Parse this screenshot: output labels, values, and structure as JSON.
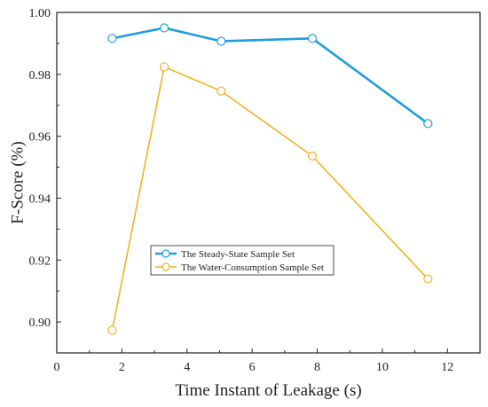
{
  "chart_data": {
    "type": "line",
    "title": "",
    "xlabel": "Time Instant of Leakage (s)",
    "ylabel": "F-Score (%)",
    "xlim": [
      0,
      13
    ],
    "ylim": [
      0.89,
      1.0
    ],
    "xticks": [
      0,
      2,
      4,
      6,
      8,
      10,
      12
    ],
    "yticks": [
      0.9,
      0.92,
      0.94,
      0.96,
      0.98,
      1.0
    ],
    "ytick_labels": [
      "0.90",
      "0.92",
      "0.94",
      "0.96",
      "0.98",
      "1.00"
    ],
    "grid": false,
    "legend_position": "lower-center",
    "series": [
      {
        "name": "The Steady-State Sample Set",
        "color": "#1f9de0",
        "marker": "open-circle",
        "x": [
          1.7,
          3.3,
          5.05,
          7.85,
          11.4
        ],
        "y": [
          0.9916,
          0.995,
          0.9907,
          0.9916,
          0.9641
        ]
      },
      {
        "name": "The Water-Consumption Sample Set",
        "color": "#f0b324",
        "marker": "open-circle",
        "x": [
          1.7,
          3.3,
          5.05,
          7.85,
          11.4
        ],
        "y": [
          0.8973,
          0.9824,
          0.9746,
          0.9536,
          0.9139
        ]
      }
    ]
  }
}
